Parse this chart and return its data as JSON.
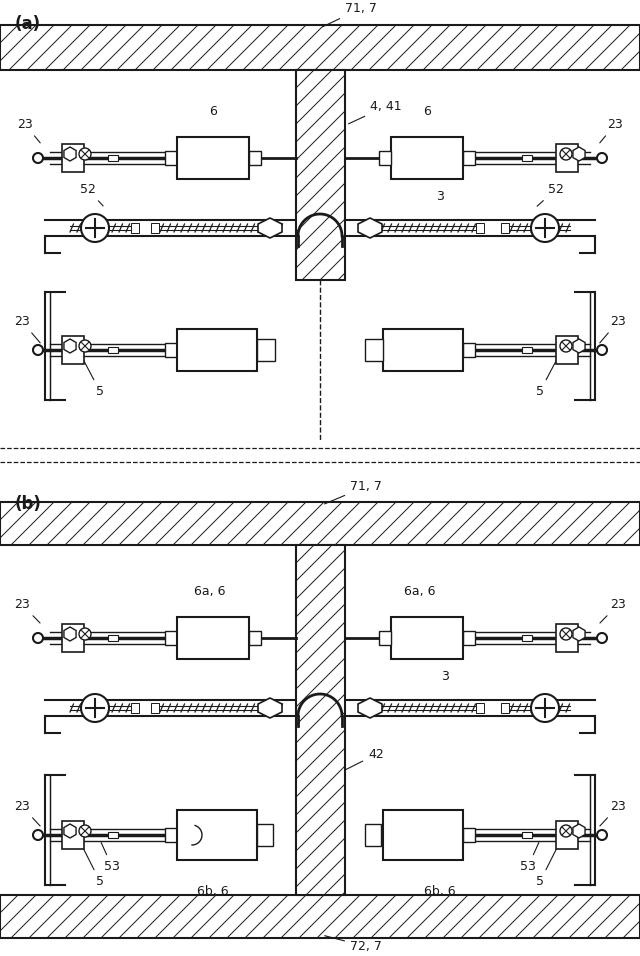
{
  "bg_color": "#ffffff",
  "lc": "#1a1a1a",
  "panel_a": "(a)",
  "panel_b": "(b)",
  "a_71_7": "71, 7",
  "a_4_41": "4, 41",
  "a_6L": "6",
  "a_6R": "6",
  "a_3": "3",
  "a_52L": "52",
  "a_52R": "52",
  "a_23TL": "23",
  "a_23TR": "23",
  "a_23BL": "23",
  "a_23BR": "23",
  "a_5L": "5",
  "a_5R": "5",
  "b_71_7": "71, 7",
  "b_72_7": "72, 7",
  "b_6aL": "6a, 6",
  "b_6aR": "6a, 6",
  "b_6bL": "6b, 6",
  "b_6bR": "6b, 6",
  "b_3": "3",
  "b_42": "42",
  "b_53L": "53",
  "b_53R": "53",
  "b_23TL": "23",
  "b_23TR": "23",
  "b_23BL": "23",
  "b_23BR": "23",
  "b_5L": "5",
  "b_5R": "5"
}
